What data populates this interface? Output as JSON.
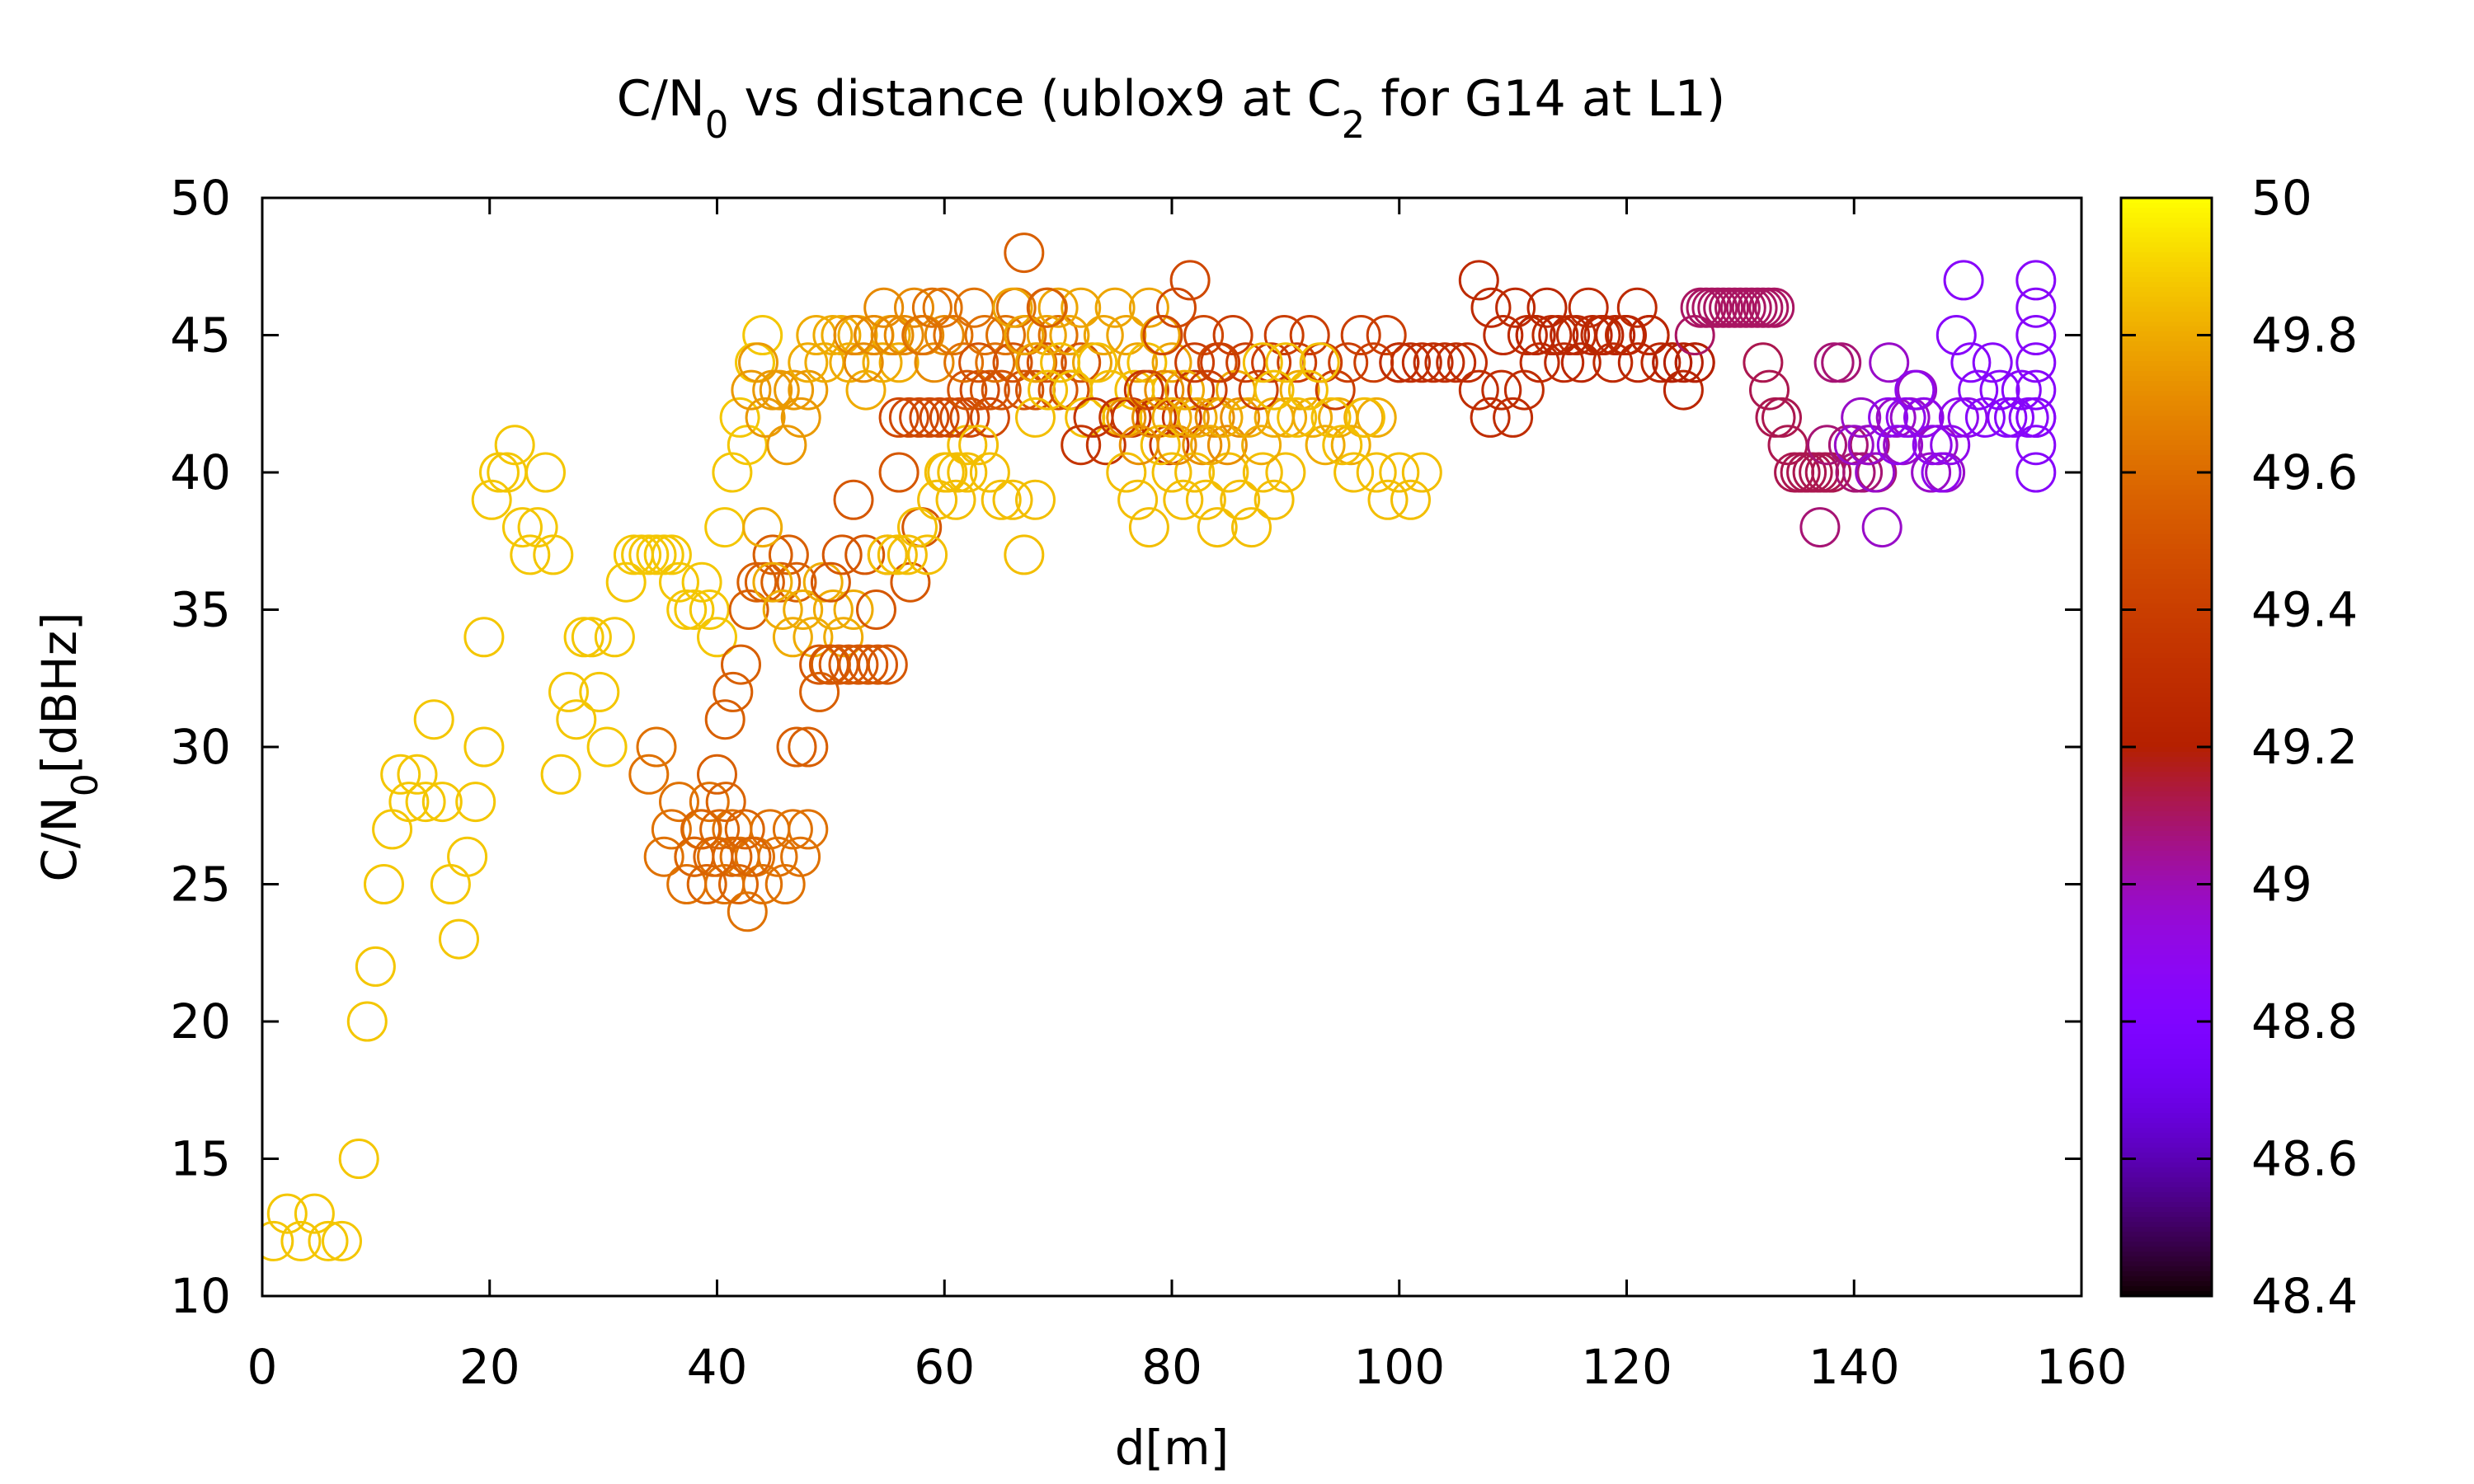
{
  "chart_data": {
    "type": "scatter",
    "title": {
      "parts": [
        {
          "text": "C/N"
        },
        {
          "text": "0",
          "sub": true
        },
        {
          "text": " vs distance (ublox9 at C"
        },
        {
          "text": "2",
          "sub": true
        },
        {
          "text": " for G14 at L1)"
        }
      ]
    },
    "xlabel": "d[m]",
    "ylabel": {
      "parts": [
        {
          "text": "C/N"
        },
        {
          "text": "0",
          "sub": true
        },
        {
          "text": "[dBHz]"
        }
      ]
    },
    "xlim": [
      0,
      160
    ],
    "ylim": [
      10,
      50
    ],
    "xticks": [
      "0",
      "20",
      "40",
      "60",
      "80",
      "100",
      "120",
      "140",
      "160"
    ],
    "yticks": [
      "10",
      "15",
      "20",
      "25",
      "30",
      "35",
      "40",
      "45",
      "50"
    ],
    "colorbar": {
      "range": [
        48.4,
        50
      ],
      "ticks": [
        "48.4",
        "48.6",
        "48.8",
        "49",
        "49.2",
        "49.4",
        "49.6",
        "49.8",
        "50"
      ],
      "palette": "gnuplot"
    },
    "grid": false,
    "legend": "none",
    "marker": "open-circle",
    "segments": [
      {
        "x0": 1,
        "x1": 7,
        "ys": [
          12,
          13,
          12,
          13,
          12,
          12
        ],
        "c": 49.87
      },
      {
        "x0": 8.5,
        "x1": 19.5,
        "ys": [
          15,
          20,
          22,
          25,
          27,
          29,
          28,
          29,
          28,
          31,
          28,
          25,
          23,
          26,
          28,
          30
        ],
        "c": 49.87
      },
      {
        "x0": 19.5,
        "x1": 31,
        "ys": [
          34,
          39,
          40,
          40,
          41,
          38,
          37,
          38,
          40,
          37,
          29,
          32,
          31,
          34,
          34,
          32,
          30,
          34
        ],
        "c": 49.87
      },
      {
        "x0": 32,
        "x1": 44,
        "ys": [
          36,
          37,
          37,
          37,
          37,
          37,
          37,
          36,
          35,
          35,
          36,
          35,
          34,
          38,
          40,
          42,
          41,
          44,
          45
        ],
        "c": 49.87
      },
      {
        "x0": 34,
        "x1": 48,
        "ys": [
          29,
          30,
          26,
          27,
          28,
          25,
          26,
          27,
          28,
          26,
          25,
          27,
          26,
          24,
          26,
          25,
          27,
          26,
          25,
          27,
          26,
          27
        ],
        "c": 49.62
      },
      {
        "x0": 38,
        "x1": 43,
        "ys": [
          26,
          27,
          25,
          26,
          27,
          28,
          26,
          25,
          27,
          26
        ],
        "c": 49.57
      },
      {
        "x0": 40,
        "x1": 47,
        "ys": [
          29,
          31,
          32,
          33,
          35,
          36,
          36,
          37,
          36,
          37,
          36
        ],
        "c": 49.55
      },
      {
        "x0": 43,
        "x1": 48,
        "ys": [
          43,
          44,
          42,
          43,
          43,
          41,
          43,
          42,
          43
        ],
        "c": 49.75
      },
      {
        "x0": 44,
        "x1": 52,
        "ys": [
          38,
          36,
          35,
          34,
          35,
          34,
          36,
          35,
          34,
          35
        ],
        "c": 49.8
      },
      {
        "x0": 47,
        "x1": 50,
        "ys": [
          30,
          30,
          32,
          33
        ],
        "c": 49.55
      },
      {
        "x0": 48,
        "x1": 56,
        "ys": [
          44,
          45,
          44,
          45,
          45,
          44,
          45,
          43,
          45,
          44,
          45,
          44
        ],
        "c": 49.8
      },
      {
        "x0": 49,
        "x1": 55,
        "ys": [
          33,
          33,
          33,
          33,
          33,
          33,
          33,
          33
        ],
        "c": 49.52
      },
      {
        "x0": 50,
        "x1": 58,
        "ys": [
          36,
          37,
          39,
          37,
          35,
          37,
          40,
          36,
          38
        ],
        "c": 49.52
      },
      {
        "x0": 52,
        "x1": 60,
        "ys": [
          45,
          44,
          45,
          46,
          45,
          45,
          46,
          45,
          44,
          45
        ],
        "c": 49.7
      },
      {
        "x0": 55,
        "x1": 62,
        "ys": [
          37,
          37,
          37,
          38,
          37,
          39,
          40,
          40,
          41
        ],
        "c": 49.85
      },
      {
        "x0": 56,
        "x1": 64,
        "ys": [
          42,
          42,
          42,
          42,
          42,
          42,
          42,
          42,
          43,
          42
        ],
        "c": 49.45
      },
      {
        "x0": 58,
        "x1": 70,
        "ys": [
          45,
          46,
          46,
          45,
          44,
          46,
          45,
          44,
          45,
          46,
          45,
          44,
          46,
          45
        ],
        "c": 49.62
      },
      {
        "x0": 60,
        "x1": 68,
        "ys": [
          40,
          39,
          40,
          41,
          40,
          39,
          39,
          37,
          39
        ],
        "c": 49.85
      },
      {
        "x0": 62,
        "x1": 72,
        "ys": [
          43,
          44,
          43,
          43,
          44,
          43,
          43,
          44,
          43,
          43,
          44
        ],
        "c": 49.5
      },
      {
        "x0": 66,
        "x1": 80,
        "ys": [
          46,
          45,
          44,
          45,
          46,
          45,
          46,
          44,
          45,
          46,
          45,
          44,
          46,
          45,
          44
        ],
        "c": 49.78
      },
      {
        "x0": 67,
        "x1": 69,
        "ys": [
          48,
          46
        ],
        "c": 49.55
      },
      {
        "x0": 68,
        "x1": 80,
        "ys": [
          42,
          43,
          44,
          43,
          42,
          44,
          43,
          42,
          43,
          44,
          42,
          43
        ],
        "c": 49.85
      },
      {
        "x0": 72,
        "x1": 82,
        "ys": [
          41,
          42,
          41,
          42,
          42,
          43,
          42,
          41,
          42,
          43
        ],
        "c": 49.35
      },
      {
        "x0": 76,
        "x1": 90,
        "ys": [
          40,
          39,
          38,
          41,
          40,
          39,
          40,
          39,
          38,
          40,
          39,
          38,
          40,
          39,
          40
        ],
        "c": 49.85
      },
      {
        "x0": 76,
        "x1": 86,
        "ys": [
          42,
          41,
          42,
          43,
          41,
          42,
          41,
          42,
          41,
          42
        ],
        "c": 49.72
      },
      {
        "x0": 78,
        "x1": 84,
        "ys": [
          43,
          45,
          46,
          47,
          45,
          44
        ],
        "c": 49.45
      },
      {
        "x0": 80,
        "x1": 98,
        "ys": [
          42,
          43,
          42,
          41,
          42,
          43,
          42,
          41,
          42,
          42,
          43,
          42,
          41,
          42,
          41,
          42,
          42
        ],
        "c": 49.8
      },
      {
        "x0": 82,
        "x1": 100,
        "ys": [
          44,
          43,
          44,
          45,
          44,
          43,
          44,
          45,
          44,
          45,
          44,
          43,
          44,
          45,
          44,
          45,
          44
        ],
        "c": 49.4
      },
      {
        "x0": 88,
        "x1": 102,
        "ys": [
          44,
          43,
          44,
          42,
          43,
          44,
          42,
          41,
          40,
          42,
          40,
          39,
          40,
          39,
          40
        ],
        "c": 49.85
      },
      {
        "x0": 100,
        "x1": 112,
        "ys": [
          44,
          44,
          44,
          44,
          44,
          44,
          44,
          43,
          42,
          43,
          42,
          43,
          45
        ],
        "c": 49.3
      },
      {
        "x0": 107,
        "x1": 122,
        "ys": [
          47,
          46,
          45,
          46,
          45,
          44,
          45,
          44,
          45,
          46,
          45,
          44,
          45,
          46,
          45
        ],
        "c": 49.28
      },
      {
        "x0": 112,
        "x1": 126,
        "ys": [
          45,
          46,
          45,
          45,
          44,
          45,
          45,
          45,
          45,
          44,
          45,
          44,
          44,
          43,
          44
        ],
        "c": 49.25
      },
      {
        "x0": 124,
        "x1": 126,
        "ys": [
          44,
          44,
          44
        ],
        "c": 49.2
      },
      {
        "x0": 126,
        "x1": 133,
        "ys": [
          45,
          46,
          46,
          46,
          46,
          46,
          46,
          46,
          46,
          46,
          46,
          46,
          46,
          46,
          46
        ],
        "c": 49.1
      },
      {
        "x0": 132,
        "x1": 138,
        "ys": [
          44,
          43,
          42,
          42,
          41,
          40,
          40,
          40,
          40,
          40,
          40,
          40
        ],
        "c": 49.12
      },
      {
        "x0": 137,
        "x1": 142,
        "ys": [
          38,
          41,
          44,
          44,
          41,
          40,
          40,
          41,
          40
        ],
        "c": 49.08
      },
      {
        "x0": 140,
        "x1": 148,
        "ys": [
          41,
          42,
          41,
          40,
          38,
          44,
          42,
          41,
          42,
          43,
          42,
          40,
          41,
          40
        ],
        "c": 48.97
      },
      {
        "x0": 143,
        "x1": 150,
        "ys": [
          42,
          41,
          42,
          43,
          42,
          41,
          40,
          41,
          42,
          42
        ],
        "c": 48.9
      },
      {
        "x0": 149,
        "x1": 156,
        "ys": [
          45,
          47,
          44,
          43,
          42,
          44,
          43,
          42,
          42,
          43,
          42,
          42
        ],
        "c": 48.85
      },
      {
        "x0": 156,
        "x1": 156,
        "ys": [
          47,
          46,
          45,
          44,
          43,
          42,
          41,
          40
        ],
        "c": 48.85
      }
    ]
  }
}
